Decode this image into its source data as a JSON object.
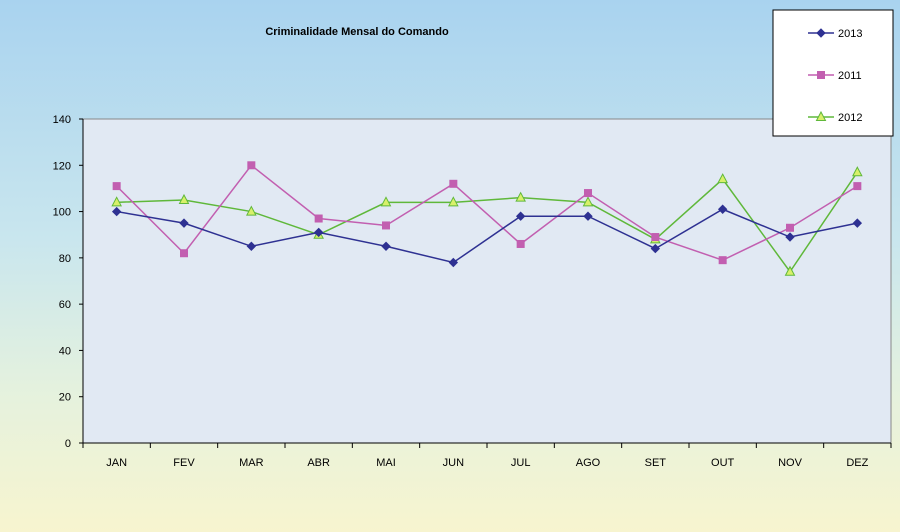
{
  "chart_data": {
    "type": "line",
    "title": "Criminalidade Mensal do Comando",
    "categories": [
      "JAN",
      "FEV",
      "MAR",
      "ABR",
      "MAI",
      "JUN",
      "JUL",
      "AGO",
      "SET",
      "OUT",
      "NOV",
      "DEZ"
    ],
    "ylim": [
      0,
      140
    ],
    "yticks": [
      0,
      20,
      40,
      60,
      80,
      100,
      120,
      140
    ],
    "grid": false,
    "legend_position": "top-right",
    "series": [
      {
        "name": "2013",
        "color": "#2e3192",
        "marker": "diamond",
        "values": [
          100,
          95,
          85,
          91,
          85,
          78,
          98,
          98,
          84,
          101,
          89,
          95
        ]
      },
      {
        "name": "2011",
        "color": "#c25fb0",
        "marker": "square",
        "values": [
          111,
          82,
          120,
          97,
          94,
          112,
          86,
          108,
          89,
          79,
          93,
          111
        ]
      },
      {
        "name": "2012",
        "color": "#5fb83a",
        "marker": "triangle",
        "values": [
          104,
          105,
          100,
          90,
          104,
          104,
          106,
          104,
          88,
          114,
          74,
          117
        ]
      }
    ]
  }
}
